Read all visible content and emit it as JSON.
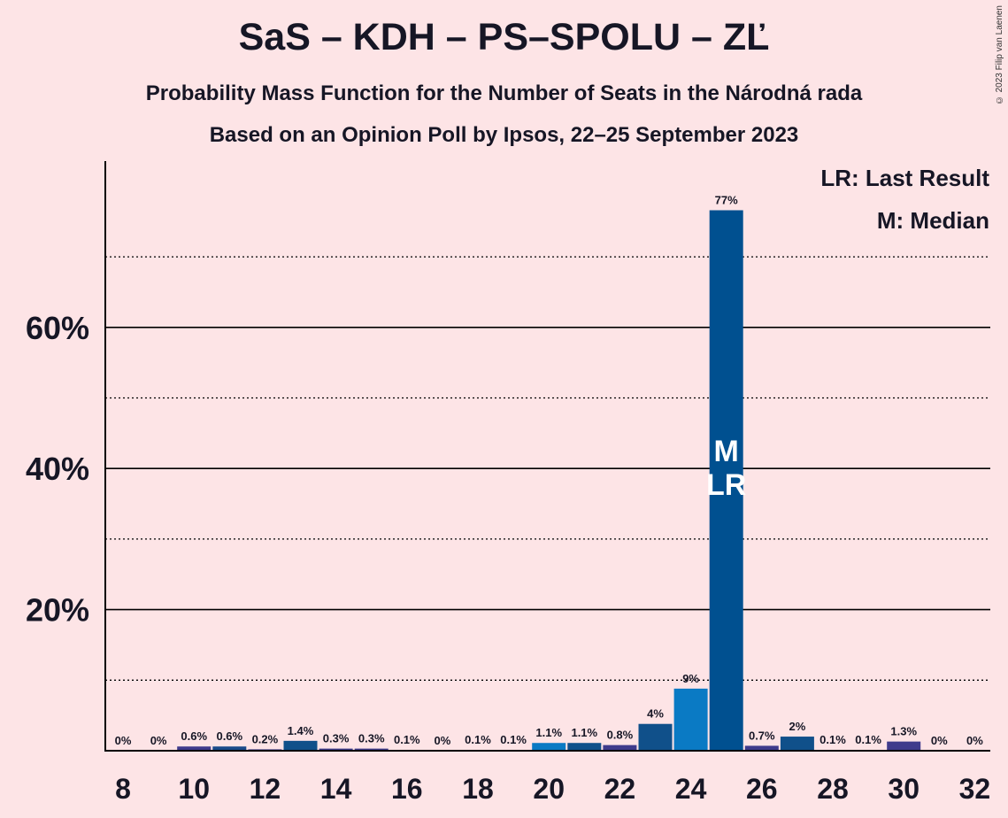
{
  "title": "SaS – KDH – PS–SPOLU – ZĽ",
  "subtitle1": "Probability Mass Function for the Number of Seats in the Národná rada",
  "subtitle2": "Based on an Opinion Poll by Ipsos, 22–25 September 2023",
  "copyright": "© 2023 Filip van Laenen",
  "legend": {
    "lr": "LR: Last Result",
    "m": "M: Median"
  },
  "chart_data": {
    "type": "bar",
    "x": [
      8,
      9,
      10,
      11,
      12,
      13,
      14,
      15,
      16,
      17,
      18,
      19,
      20,
      21,
      22,
      23,
      24,
      25,
      26,
      27,
      28,
      29,
      30,
      31,
      32
    ],
    "values": [
      0,
      0,
      0.6,
      0.6,
      0.2,
      1.4,
      0.3,
      0.3,
      0.1,
      0,
      0.1,
      0.1,
      1.1,
      1.1,
      0.8,
      3.8,
      8.8,
      76.6,
      0.7,
      2.0,
      0.1,
      0.1,
      1.3,
      0,
      0
    ],
    "data_labels": [
      "0%",
      "0%",
      "0.6%",
      "0.6%",
      "0.2%",
      "1.4%",
      "0.3%",
      "0.3%",
      "0.1%",
      "0%",
      "0.1%",
      "0.1%",
      "1.1%",
      "1.1%",
      "0.8%",
      "4%",
      "9%",
      "77%",
      "0.7%",
      "2%",
      "0.1%",
      "0.1%",
      "1.3%",
      "0%",
      "0%"
    ],
    "bar_colors": [
      "#3f3b8c",
      "#3f3b8c",
      "#3f3b8c",
      "#1a4a8a",
      "#3f3b8c",
      "#10508a",
      "#3f3b8c",
      "#3f3b8c",
      "#3f3b8c",
      "#3f3b8c",
      "#3f3b8c",
      "#3f3b8c",
      "#0a7ac4",
      "#10508a",
      "#3f3b8c",
      "#10508a",
      "#0a7ac4",
      "#005090",
      "#3f3b8c",
      "#10508a",
      "#3f3b8c",
      "#3f3b8c",
      "#3f3b8c",
      "#3f3b8c",
      "#3f3b8c"
    ],
    "x_ticks": [
      8,
      10,
      12,
      14,
      16,
      18,
      20,
      22,
      24,
      26,
      28,
      30,
      32
    ],
    "y_ticks": [
      20,
      40,
      60
    ],
    "y_tick_labels": [
      "20%",
      "40%",
      "60%"
    ],
    "ylim": [
      0,
      83
    ],
    "solid_gridlines": [
      20,
      40,
      60
    ],
    "dotted_gridlines": [
      10,
      30,
      50,
      70
    ],
    "median_x": 25,
    "last_result_x": 25,
    "median_marker": "M",
    "last_result_marker": "LR",
    "legend_position": "top-right"
  }
}
